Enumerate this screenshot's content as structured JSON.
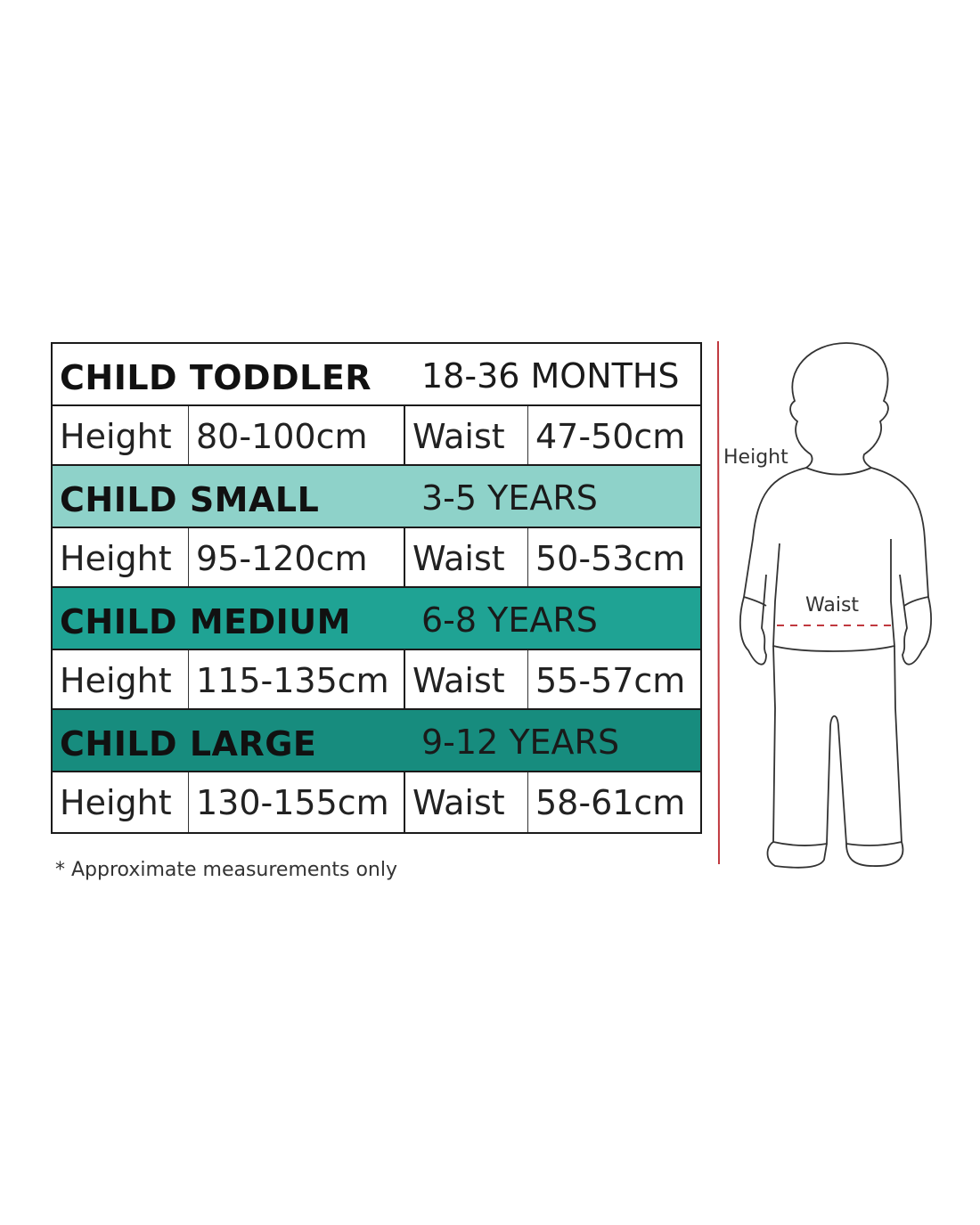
{
  "sizes": [
    {
      "name": "CHILD TODDLER",
      "age": "18-36 MONTHS",
      "height_label": "Height",
      "height": "80-100cm",
      "waist_label": "Waist",
      "waist": "47-50cm",
      "color": "#ffffff"
    },
    {
      "name": "CHILD SMALL",
      "age": "3-5 YEARS",
      "height_label": "Height",
      "height": "95-120cm",
      "waist_label": "Waist",
      "waist": "50-53cm",
      "color": "#8ed2c9"
    },
    {
      "name": "CHILD MEDIUM",
      "age": "6-8 YEARS",
      "height_label": "Height",
      "height": "115-135cm",
      "waist_label": "Waist",
      "waist": "55-57cm",
      "color": "#1fa394"
    },
    {
      "name": "CHILD LARGE",
      "age": "9-12 YEARS",
      "height_label": "Height",
      "height": "130-155cm",
      "waist_label": "Waist",
      "waist": "58-61cm",
      "color": "#178c7e"
    }
  ],
  "note": "* Approximate measurements only",
  "figure": {
    "height_label": "Height",
    "waist_label": "Waist",
    "measure_color": "#c0393f"
  }
}
